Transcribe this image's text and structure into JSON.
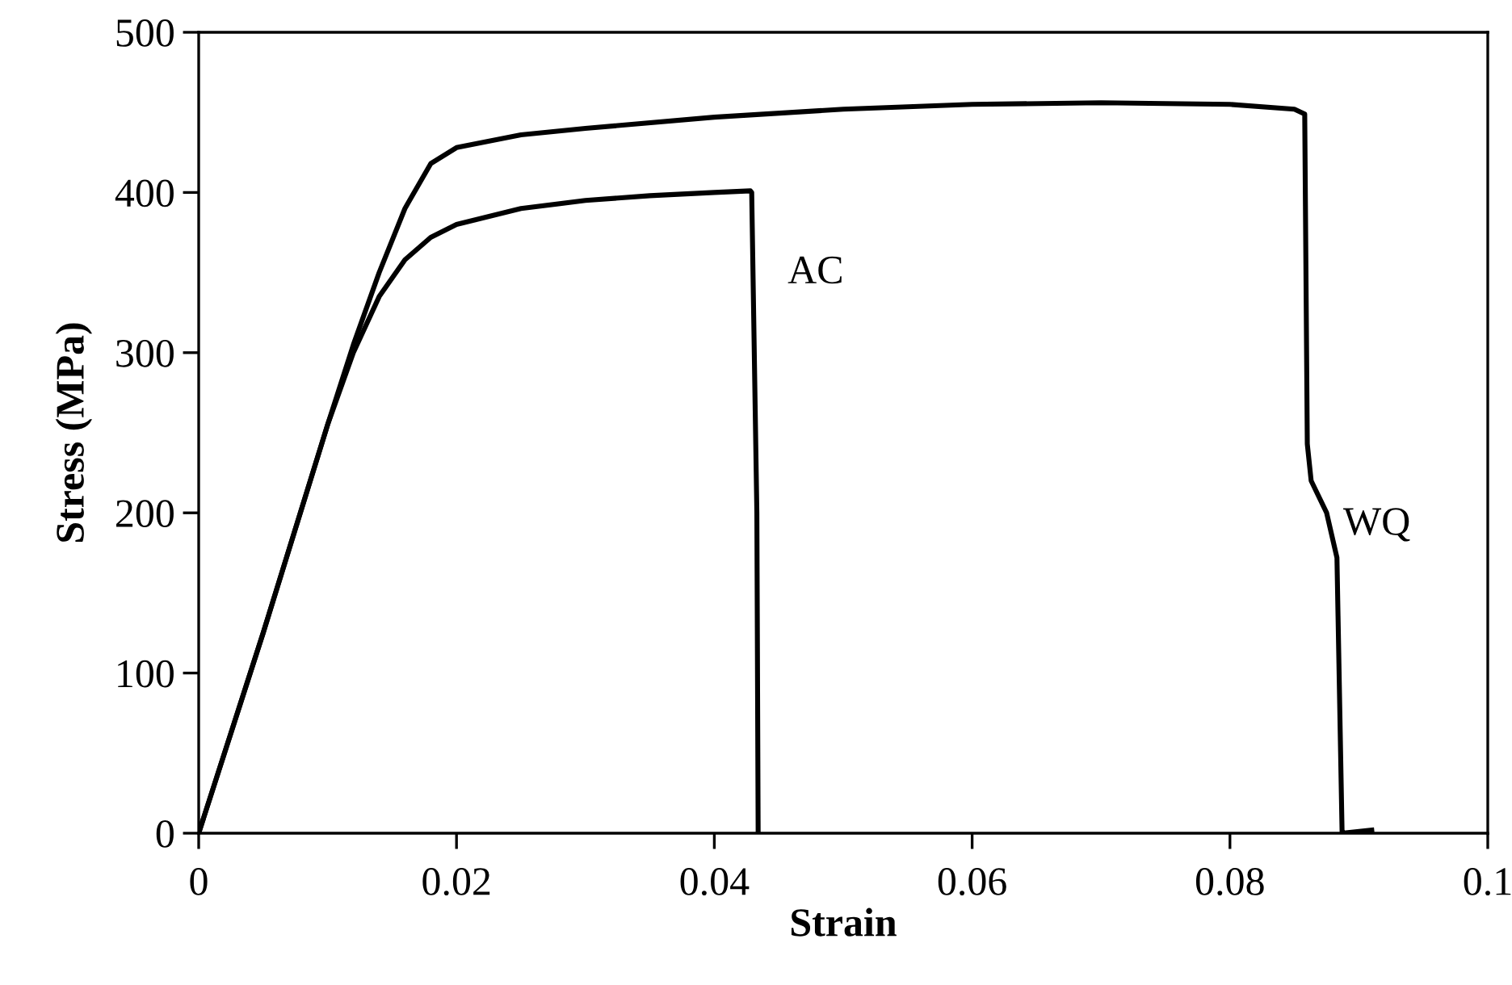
{
  "chart_data": {
    "type": "line",
    "xlabel": "Strain",
    "ylabel": "Stress (MPa)",
    "xlim": [
      0,
      0.1
    ],
    "ylim": [
      0,
      500
    ],
    "xticks": [
      0,
      0.02,
      0.04,
      0.06,
      0.08,
      0.1
    ],
    "yticks": [
      0,
      100,
      200,
      300,
      400,
      500
    ],
    "grid": false,
    "legend": false,
    "marker": "none",
    "line_style": "solid",
    "series": [
      {
        "name": "WQ",
        "color": "#000000",
        "x": [
          0,
          0.005,
          0.01,
          0.012,
          0.014,
          0.016,
          0.018,
          0.02,
          0.025,
          0.03,
          0.04,
          0.05,
          0.06,
          0.07,
          0.08,
          0.085,
          0.0858,
          0.086,
          0.0863,
          0.0875,
          0.0883,
          0.0887,
          0.091
        ],
        "values": [
          0,
          125,
          255,
          305,
          350,
          390,
          418,
          428,
          436,
          440,
          447,
          452,
          455,
          456,
          455,
          452,
          449,
          243,
          220,
          200,
          172,
          0,
          2
        ]
      },
      {
        "name": "AC",
        "color": "#000000",
        "x": [
          0,
          0.005,
          0.01,
          0.012,
          0.014,
          0.016,
          0.018,
          0.02,
          0.025,
          0.03,
          0.035,
          0.04,
          0.0428,
          0.0429,
          0.0433,
          0.0434
        ],
        "values": [
          0,
          125,
          255,
          300,
          335,
          358,
          372,
          380,
          390,
          395,
          398,
          400,
          401,
          400,
          200,
          0
        ]
      }
    ]
  }
}
